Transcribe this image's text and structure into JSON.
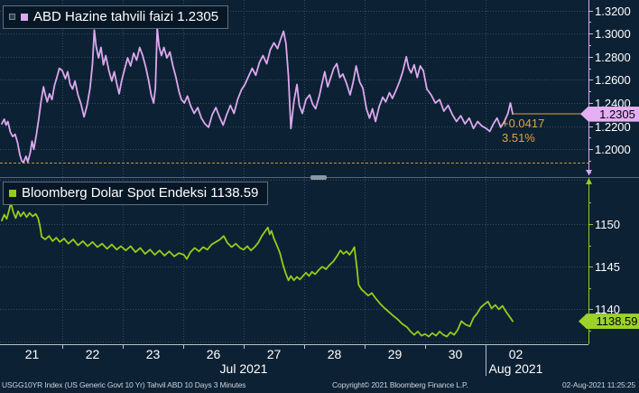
{
  "colors": {
    "background": "#0d2134",
    "grid": "#2e4d6a",
    "top_series": "#dca8ee",
    "top_tag_bg": "#e3aef2",
    "bottom_series": "#93ce18",
    "bottom_tag_bg": "#9bd32a",
    "accent_orange": "#e2a33c",
    "ref_line": "#c2963a",
    "axis_text": "#ffffff",
    "x_axis_line": "#b9c4cf",
    "month_divider": "#aebfce",
    "separator": "#5a6874"
  },
  "top_panel": {
    "legend_label": "ABD Hazine tahvili faizi 1.2305",
    "tag_value": "1.2305",
    "change_abs": "+0.0417",
    "change_pct": "3.51%"
  },
  "bottom_panel": {
    "legend_label": "Bloomberg Dolar Spot Endeksi 1138.59",
    "tag_value": "1138.59"
  },
  "x_axis": {
    "day_labels": [
      "21",
      "22",
      "23",
      "26",
      "27",
      "28",
      "29",
      "30",
      "02"
    ],
    "month_labels": [
      {
        "label": "Jul 2021",
        "center_unit": 4.0
      },
      {
        "label": "Aug 2021",
        "center_unit": 8.5
      }
    ]
  },
  "footer": {
    "left": "USGG10YR Index (US Generic Govt 10 Yr) Tahvil ABD 10 Days 3 Minutes",
    "center": "Copyright© 2021 Bloomberg Finance L.P.",
    "right": "02-Aug-2021 11:25:25"
  },
  "chart_data": [
    {
      "type": "line",
      "name": "USGG10YR Index — ABD Hazine tahvili faizi (US 10Y yield)",
      "last_value": 1.2305,
      "change": "+0.0417",
      "change_pct": "3.51%",
      "reference_level": 1.1888,
      "ylim": [
        1.176,
        1.329
      ],
      "y_ticks": [
        {
          "v": 1.2,
          "label": "1.2000"
        },
        {
          "v": 1.22,
          "label": "1.2200"
        },
        {
          "v": 1.24,
          "label": "1.2400"
        },
        {
          "v": 1.26,
          "label": "1.2600"
        },
        {
          "v": 1.28,
          "label": "1.2800"
        },
        {
          "v": 1.3,
          "label": "1.3000"
        },
        {
          "v": 1.32,
          "label": "1.3200"
        }
      ],
      "y_minor_step": 0.01,
      "x_categories": [
        "21",
        "22",
        "23",
        "26",
        "27",
        "28",
        "29",
        "30",
        "02"
      ],
      "x_range_days": [
        0,
        9
      ],
      "points": [
        [
          0.0,
          1.222
        ],
        [
          0.04,
          1.226
        ],
        [
          0.07,
          1.221
        ],
        [
          0.1,
          1.224
        ],
        [
          0.14,
          1.215
        ],
        [
          0.18,
          1.211
        ],
        [
          0.22,
          1.213
        ],
        [
          0.26,
          1.206
        ],
        [
          0.3,
          1.195
        ],
        [
          0.33,
          1.19
        ],
        [
          0.36,
          1.1888
        ],
        [
          0.4,
          1.194
        ],
        [
          0.43,
          1.189
        ],
        [
          0.47,
          1.197
        ],
        [
          0.5,
          1.207
        ],
        [
          0.53,
          1.2
        ],
        [
          0.57,
          1.212
        ],
        [
          0.61,
          1.226
        ],
        [
          0.65,
          1.242
        ],
        [
          0.69,
          1.254
        ],
        [
          0.72,
          1.247
        ],
        [
          0.75,
          1.241
        ],
        [
          0.79,
          1.248
        ],
        [
          0.83,
          1.243
        ],
        [
          0.87,
          1.255
        ],
        [
          0.91,
          1.262
        ],
        [
          0.95,
          1.27
        ],
        [
          1.0,
          1.268
        ],
        [
          1.05,
          1.261
        ],
        [
          1.09,
          1.267
        ],
        [
          1.13,
          1.256
        ],
        [
          1.17,
          1.252
        ],
        [
          1.21,
          1.259
        ],
        [
          1.26,
          1.247
        ],
        [
          1.31,
          1.239
        ],
        [
          1.36,
          1.228
        ],
        [
          1.41,
          1.238
        ],
        [
          1.46,
          1.253
        ],
        [
          1.5,
          1.274
        ],
        [
          1.53,
          1.303
        ],
        [
          1.56,
          1.289
        ],
        [
          1.6,
          1.279
        ],
        [
          1.64,
          1.288
        ],
        [
          1.68,
          1.273
        ],
        [
          1.72,
          1.281
        ],
        [
          1.77,
          1.268
        ],
        [
          1.82,
          1.259
        ],
        [
          1.86,
          1.267
        ],
        [
          1.9,
          1.257
        ],
        [
          1.94,
          1.248
        ],
        [
          1.98,
          1.259
        ],
        [
          2.03,
          1.269
        ],
        [
          2.08,
          1.279
        ],
        [
          2.13,
          1.272
        ],
        [
          2.18,
          1.283
        ],
        [
          2.23,
          1.277
        ],
        [
          2.28,
          1.288
        ],
        [
          2.33,
          1.281
        ],
        [
          2.38,
          1.271
        ],
        [
          2.43,
          1.259
        ],
        [
          2.47,
          1.247
        ],
        [
          2.51,
          1.24
        ],
        [
          2.54,
          1.253
        ],
        [
          2.57,
          1.305
        ],
        [
          2.6,
          1.289
        ],
        [
          2.64,
          1.281
        ],
        [
          2.68,
          1.288
        ],
        [
          2.73,
          1.279
        ],
        [
          2.78,
          1.284
        ],
        [
          2.83,
          1.272
        ],
        [
          2.88,
          1.262
        ],
        [
          2.93,
          1.25
        ],
        [
          2.97,
          1.243
        ],
        [
          3.02,
          1.24
        ],
        [
          3.07,
          1.246
        ],
        [
          3.12,
          1.238
        ],
        [
          3.18,
          1.231
        ],
        [
          3.24,
          1.236
        ],
        [
          3.3,
          1.227
        ],
        [
          3.36,
          1.222
        ],
        [
          3.42,
          1.219
        ],
        [
          3.48,
          1.23
        ],
        [
          3.54,
          1.236
        ],
        [
          3.6,
          1.228
        ],
        [
          3.66,
          1.221
        ],
        [
          3.72,
          1.23
        ],
        [
          3.78,
          1.238
        ],
        [
          3.84,
          1.231
        ],
        [
          3.9,
          1.243
        ],
        [
          3.96,
          1.251
        ],
        [
          4.02,
          1.256
        ],
        [
          4.08,
          1.263
        ],
        [
          4.14,
          1.27
        ],
        [
          4.2,
          1.264
        ],
        [
          4.26,
          1.275
        ],
        [
          4.32,
          1.281
        ],
        [
          4.38,
          1.274
        ],
        [
          4.44,
          1.286
        ],
        [
          4.5,
          1.292
        ],
        [
          4.56,
          1.287
        ],
        [
          4.61,
          1.295
        ],
        [
          4.66,
          1.302
        ],
        [
          4.7,
          1.291
        ],
        [
          4.74,
          1.263
        ],
        [
          4.78,
          1.218
        ],
        [
          4.83,
          1.241
        ],
        [
          4.88,
          1.256
        ],
        [
          4.92,
          1.238
        ],
        [
          4.97,
          1.231
        ],
        [
          5.03,
          1.243
        ],
        [
          5.09,
          1.247
        ],
        [
          5.14,
          1.239
        ],
        [
          5.19,
          1.235
        ],
        [
          5.25,
          1.246
        ],
        [
          5.3,
          1.258
        ],
        [
          5.34,
          1.267
        ],
        [
          5.39,
          1.254
        ],
        [
          5.44,
          1.262
        ],
        [
          5.49,
          1.27
        ],
        [
          5.54,
          1.274
        ],
        [
          5.59,
          1.262
        ],
        [
          5.64,
          1.265
        ],
        [
          5.7,
          1.257
        ],
        [
          5.76,
          1.247
        ],
        [
          5.81,
          1.258
        ],
        [
          5.86,
          1.272
        ],
        [
          5.92,
          1.258
        ],
        [
          5.97,
          1.253
        ],
        [
          6.03,
          1.235
        ],
        [
          6.08,
          1.227
        ],
        [
          6.13,
          1.235
        ],
        [
          6.18,
          1.224
        ],
        [
          6.24,
          1.237
        ],
        [
          6.3,
          1.245
        ],
        [
          6.35,
          1.241
        ],
        [
          6.41,
          1.249
        ],
        [
          6.46,
          1.244
        ],
        [
          6.52,
          1.251
        ],
        [
          6.58,
          1.259
        ],
        [
          6.63,
          1.267
        ],
        [
          6.69,
          1.28
        ],
        [
          6.73,
          1.27
        ],
        [
          6.77,
          1.266
        ],
        [
          6.82,
          1.273
        ],
        [
          6.87,
          1.262
        ],
        [
          6.92,
          1.272
        ],
        [
          6.97,
          1.268
        ],
        [
          7.03,
          1.252
        ],
        [
          7.1,
          1.247
        ],
        [
          7.17,
          1.24
        ],
        [
          7.24,
          1.243
        ],
        [
          7.31,
          1.233
        ],
        [
          7.38,
          1.238
        ],
        [
          7.45,
          1.23
        ],
        [
          7.52,
          1.224
        ],
        [
          7.59,
          1.229
        ],
        [
          7.66,
          1.222
        ],
        [
          7.73,
          1.227
        ],
        [
          7.8,
          1.218
        ],
        [
          7.87,
          1.224
        ],
        [
          7.94,
          1.22
        ],
        [
          8.01,
          1.218
        ],
        [
          8.07,
          1.2155
        ],
        [
          8.13,
          1.222
        ],
        [
          8.19,
          1.227
        ],
        [
          8.25,
          1.219
        ],
        [
          8.31,
          1.224
        ],
        [
          8.37,
          1.231
        ],
        [
          8.41,
          1.24
        ],
        [
          8.45,
          1.2305
        ]
      ]
    },
    {
      "type": "line",
      "name": "Bloomberg Dolar Spot Endeksi (Bloomberg Dollar Spot Index)",
      "last_value": 1138.59,
      "ylim": [
        1135.9,
        1155.3
      ],
      "y_ticks": [
        {
          "v": 1140,
          "label": "1140"
        },
        {
          "v": 1145,
          "label": "1145"
        },
        {
          "v": 1150,
          "label": "1150"
        }
      ],
      "y_minor_step": 2.5,
      "x_categories": [
        "21",
        "22",
        "23",
        "26",
        "27",
        "28",
        "29",
        "30",
        "02"
      ],
      "x_range_days": [
        0,
        9
      ],
      "points": [
        [
          0.0,
          1150.4
        ],
        [
          0.04,
          1151.1
        ],
        [
          0.08,
          1150.6
        ],
        [
          0.12,
          1151.6
        ],
        [
          0.15,
          1152.5
        ],
        [
          0.19,
          1151.4
        ],
        [
          0.23,
          1150.7
        ],
        [
          0.27,
          1151.5
        ],
        [
          0.31,
          1150.9
        ],
        [
          0.36,
          1151.4
        ],
        [
          0.41,
          1150.8
        ],
        [
          0.46,
          1151.3
        ],
        [
          0.51,
          1150.9
        ],
        [
          0.56,
          1151.2
        ],
        [
          0.6,
          1150.7
        ],
        [
          0.63,
          1149.8
        ],
        [
          0.66,
          1148.5
        ],
        [
          0.72,
          1148.2
        ],
        [
          0.78,
          1148.6
        ],
        [
          0.84,
          1148.0
        ],
        [
          0.9,
          1148.4
        ],
        [
          0.96,
          1147.9
        ],
        [
          1.03,
          1148.3
        ],
        [
          1.1,
          1147.7
        ],
        [
          1.18,
          1148.2
        ],
        [
          1.26,
          1147.5
        ],
        [
          1.34,
          1148.0
        ],
        [
          1.42,
          1147.4
        ],
        [
          1.5,
          1147.9
        ],
        [
          1.58,
          1147.3
        ],
        [
          1.66,
          1147.7
        ],
        [
          1.74,
          1147.1
        ],
        [
          1.82,
          1147.6
        ],
        [
          1.9,
          1147.0
        ],
        [
          1.97,
          1147.4
        ],
        [
          2.05,
          1146.9
        ],
        [
          2.13,
          1147.4
        ],
        [
          2.21,
          1146.7
        ],
        [
          2.29,
          1147.2
        ],
        [
          2.37,
          1146.5
        ],
        [
          2.45,
          1147.0
        ],
        [
          2.53,
          1146.4
        ],
        [
          2.61,
          1146.9
        ],
        [
          2.69,
          1146.3
        ],
        [
          2.77,
          1146.8
        ],
        [
          2.85,
          1146.2
        ],
        [
          2.93,
          1146.6
        ],
        [
          3.01,
          1146.4
        ],
        [
          3.06,
          1145.9
        ],
        [
          3.12,
          1146.7
        ],
        [
          3.19,
          1147.2
        ],
        [
          3.26,
          1146.8
        ],
        [
          3.33,
          1147.3
        ],
        [
          3.4,
          1147.0
        ],
        [
          3.47,
          1147.6
        ],
        [
          3.54,
          1147.9
        ],
        [
          3.61,
          1148.2
        ],
        [
          3.67,
          1148.6
        ],
        [
          3.73,
          1147.8
        ],
        [
          3.8,
          1147.3
        ],
        [
          3.87,
          1147.7
        ],
        [
          3.94,
          1147.2
        ],
        [
          4.0,
          1147.0
        ],
        [
          4.06,
          1147.4
        ],
        [
          4.12,
          1146.9
        ],
        [
          4.18,
          1147.3
        ],
        [
          4.24,
          1147.8
        ],
        [
          4.3,
          1148.6
        ],
        [
          4.36,
          1149.2
        ],
        [
          4.4,
          1149.6
        ],
        [
          4.43,
          1148.8
        ],
        [
          4.46,
          1149.2
        ],
        [
          4.5,
          1148.3
        ],
        [
          4.55,
          1147.5
        ],
        [
          4.6,
          1146.6
        ],
        [
          4.65,
          1145.2
        ],
        [
          4.7,
          1144.1
        ],
        [
          4.74,
          1143.4
        ],
        [
          4.78,
          1143.9
        ],
        [
          4.83,
          1143.4
        ],
        [
          4.88,
          1143.8
        ],
        [
          4.93,
          1143.5
        ],
        [
          4.98,
          1143.9
        ],
        [
          5.03,
          1144.3
        ],
        [
          5.08,
          1143.9
        ],
        [
          5.13,
          1144.4
        ],
        [
          5.18,
          1144.1
        ],
        [
          5.24,
          1144.6
        ],
        [
          5.3,
          1145.0
        ],
        [
          5.36,
          1144.7
        ],
        [
          5.42,
          1145.2
        ],
        [
          5.48,
          1145.6
        ],
        [
          5.54,
          1146.2
        ],
        [
          5.6,
          1146.9
        ],
        [
          5.65,
          1146.5
        ],
        [
          5.7,
          1146.8
        ],
        [
          5.75,
          1146.4
        ],
        [
          5.8,
          1146.9
        ],
        [
          5.83,
          1147.3
        ],
        [
          5.87,
          1145.0
        ],
        [
          5.9,
          1142.9
        ],
        [
          5.95,
          1142.3
        ],
        [
          6.0,
          1142.0
        ],
        [
          6.06,
          1141.6
        ],
        [
          6.12,
          1141.9
        ],
        [
          6.18,
          1141.3
        ],
        [
          6.25,
          1140.7
        ],
        [
          6.32,
          1140.2
        ],
        [
          6.4,
          1139.7
        ],
        [
          6.48,
          1139.2
        ],
        [
          6.55,
          1138.8
        ],
        [
          6.62,
          1138.3
        ],
        [
          6.7,
          1137.9
        ],
        [
          6.76,
          1137.4
        ],
        [
          6.82,
          1137.0
        ],
        [
          6.88,
          1137.4
        ],
        [
          6.94,
          1136.9
        ],
        [
          7.0,
          1137.1
        ],
        [
          7.06,
          1136.8
        ],
        [
          7.12,
          1137.2
        ],
        [
          7.18,
          1136.9
        ],
        [
          7.24,
          1137.4
        ],
        [
          7.3,
          1137.0
        ],
        [
          7.36,
          1136.8
        ],
        [
          7.42,
          1137.3
        ],
        [
          7.48,
          1137.0
        ],
        [
          7.54,
          1137.6
        ],
        [
          7.6,
          1138.6
        ],
        [
          7.67,
          1138.2
        ],
        [
          7.74,
          1138.0
        ],
        [
          7.8,
          1139.0
        ],
        [
          7.86,
          1139.5
        ],
        [
          7.92,
          1140.2
        ],
        [
          7.98,
          1140.6
        ],
        [
          8.04,
          1140.9
        ],
        [
          8.1,
          1140.1
        ],
        [
          8.16,
          1140.5
        ],
        [
          8.22,
          1140.0
        ],
        [
          8.28,
          1140.4
        ],
        [
          8.34,
          1139.7
        ],
        [
          8.4,
          1139.1
        ],
        [
          8.45,
          1138.59
        ]
      ]
    }
  ]
}
